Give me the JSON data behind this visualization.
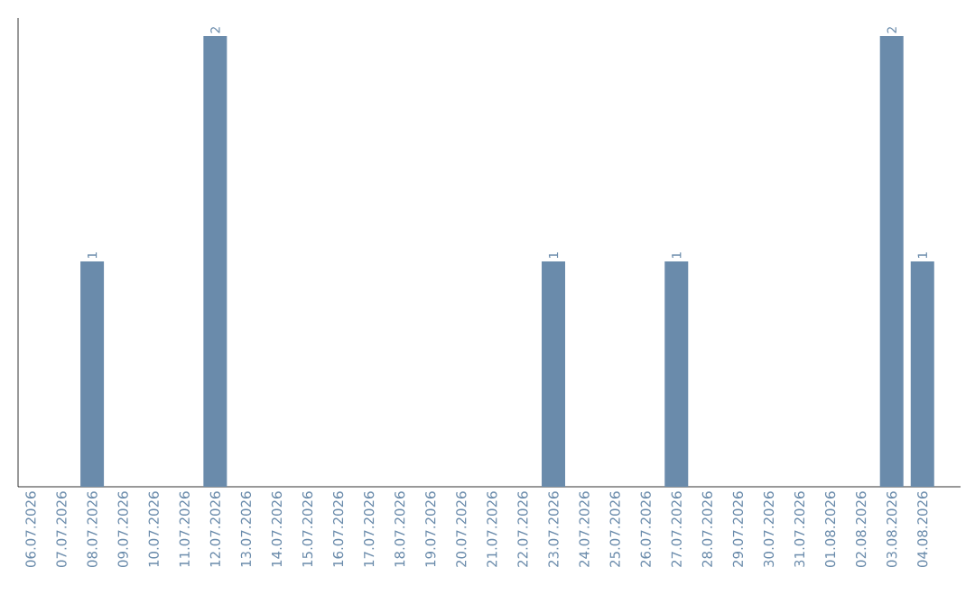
{
  "chart_data": {
    "type": "bar",
    "categories": [
      "06.07.2026",
      "07.07.2026",
      "08.07.2026",
      "09.07.2026",
      "10.07.2026",
      "11.07.2026",
      "12.07.2026",
      "13.07.2026",
      "14.07.2026",
      "15.07.2026",
      "16.07.2026",
      "17.07.2026",
      "18.07.2026",
      "19.07.2026",
      "20.07.2026",
      "21.07.2026",
      "22.07.2026",
      "23.07.2026",
      "24.07.2026",
      "25.07.2026",
      "26.07.2026",
      "27.07.2026",
      "28.07.2026",
      "29.07.2026",
      "30.07.2026",
      "31.07.2026",
      "01.08.2026",
      "02.08.2026",
      "03.08.2026",
      "04.08.2026"
    ],
    "values": [
      0,
      0,
      1,
      0,
      0,
      0,
      2,
      0,
      0,
      0,
      0,
      0,
      0,
      0,
      0,
      0,
      0,
      1,
      0,
      0,
      0,
      1,
      0,
      0,
      0,
      0,
      0,
      0,
      2,
      1
    ],
    "value_labels": [
      null,
      null,
      "1",
      null,
      null,
      null,
      "2",
      null,
      null,
      null,
      null,
      null,
      null,
      null,
      null,
      null,
      null,
      "1",
      null,
      null,
      null,
      "1",
      null,
      null,
      null,
      null,
      null,
      null,
      "2",
      "1"
    ],
    "color": "#6a8bab"
  }
}
